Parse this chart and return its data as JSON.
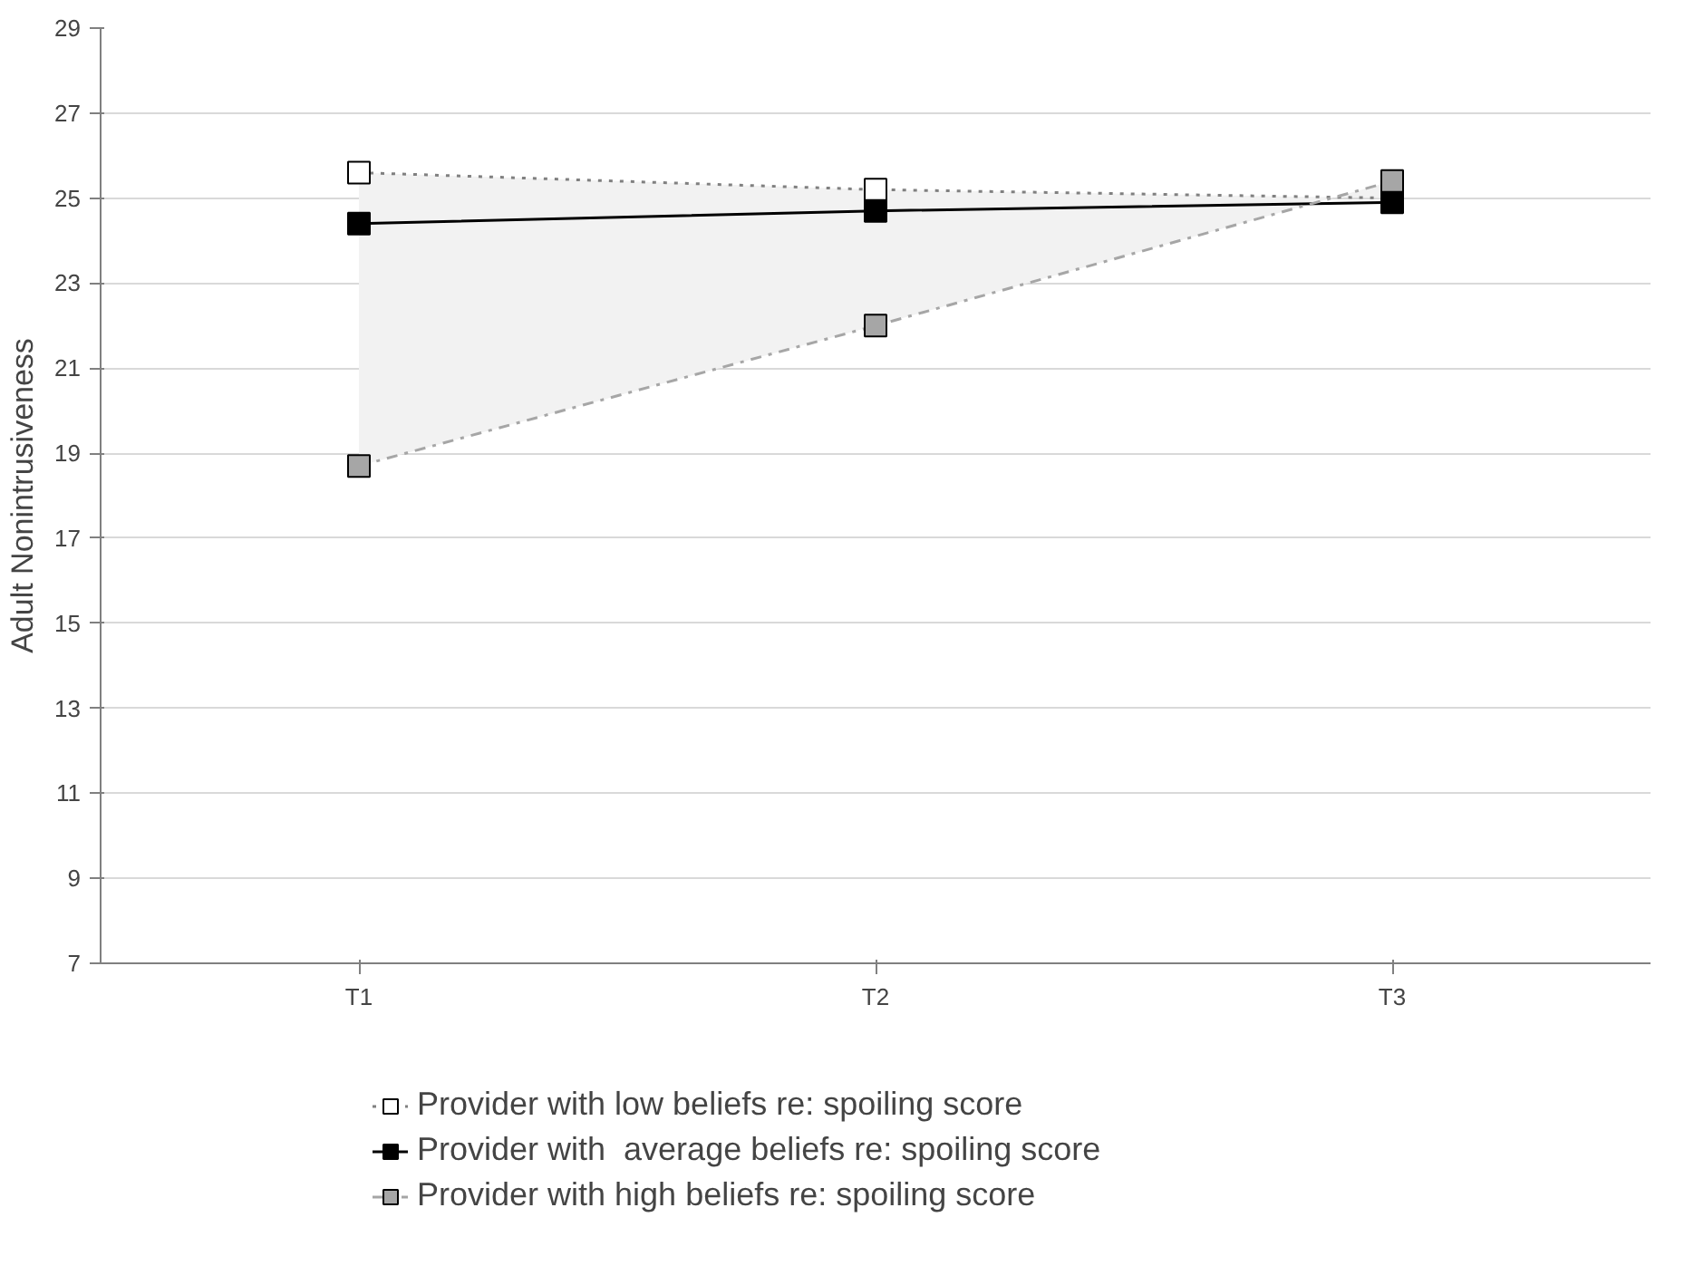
{
  "chart_data": {
    "type": "line",
    "ylabel": "Adult Nonintrusiveness",
    "categories": [
      "T1",
      "T2",
      "T3"
    ],
    "ylim": [
      7,
      29
    ],
    "yticks": [
      7,
      9,
      11,
      13,
      15,
      17,
      19,
      21,
      23,
      25,
      27,
      29
    ],
    "grid": "y",
    "legend": "bottom",
    "marker": "square",
    "series": [
      {
        "name": "Provider with low beliefs re: spoiling score",
        "color": "#ffffff",
        "line_style": "dotted",
        "values": [
          25.6,
          25.2,
          25.0
        ]
      },
      {
        "name": "Provider with  average beliefs re: spoiling score",
        "color": "#000000",
        "line_style": "solid",
        "values": [
          24.4,
          24.7,
          24.9
        ],
        "lower": [
          18.7,
          22.0,
          25.4
        ],
        "upper": [
          25.6,
          25.2,
          25.0
        ]
      },
      {
        "name": "Provider with high beliefs re: spoiling score",
        "color": "#a6a6a6",
        "line_style": "dashdot",
        "values": [
          18.7,
          22.0,
          25.4
        ]
      }
    ]
  }
}
